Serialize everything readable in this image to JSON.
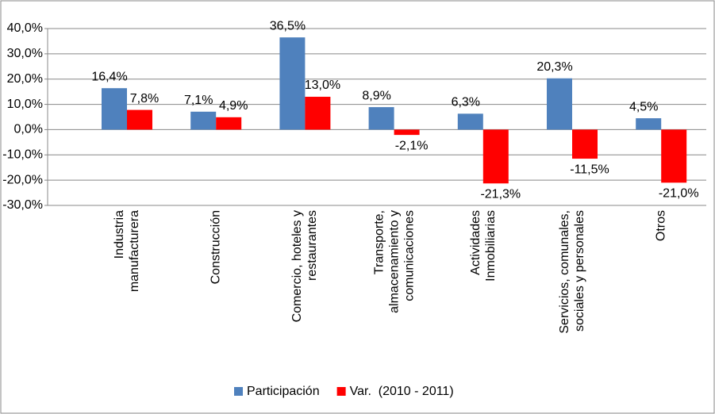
{
  "chart_data": {
    "type": "bar",
    "categories": [
      "Industria\nmanufacturera",
      "Construcción",
      "Comercio, hoteles y\nrestaurantes",
      "Transporte,\nalmacenamiento y\ncomunicaciones",
      "Actividades\nInmobiliarias",
      "Servicios, comunales,\nsociales y personales",
      "Otros"
    ],
    "series": [
      {
        "name": "Participación",
        "color": "#4f81bd",
        "values": [
          16.4,
          7.1,
          36.5,
          8.9,
          6.3,
          20.3,
          4.5
        ],
        "value_labels": [
          "16,4%",
          "7,1%",
          "36,5%",
          "8,9%",
          "6,3%",
          "20,3%",
          "4,5%"
        ]
      },
      {
        "name": "Var.  (2010 - 2011)",
        "color": "#ff0000",
        "values": [
          7.8,
          4.9,
          13.0,
          -2.1,
          -21.3,
          -11.5,
          -21.0
        ],
        "value_labels": [
          "7,8%",
          "4,9%",
          "13,0%",
          "-2,1%",
          "-21,3%",
          "-11,5%",
          "-21,0%"
        ]
      }
    ],
    "ylim": [
      -30,
      40
    ],
    "yticks": [
      {
        "value": 40,
        "label": "40,0%"
      },
      {
        "value": 30,
        "label": "30,0%"
      },
      {
        "value": 20,
        "label": "20,0%"
      },
      {
        "value": 10,
        "label": "10,0%"
      },
      {
        "value": 0,
        "label": "0,0%"
      },
      {
        "value": -10,
        "label": "-10,0%"
      },
      {
        "value": -20,
        "label": "-20,0%"
      },
      {
        "value": -30,
        "label": "-30,0%"
      }
    ],
    "grid": true,
    "legend": "bottom"
  }
}
